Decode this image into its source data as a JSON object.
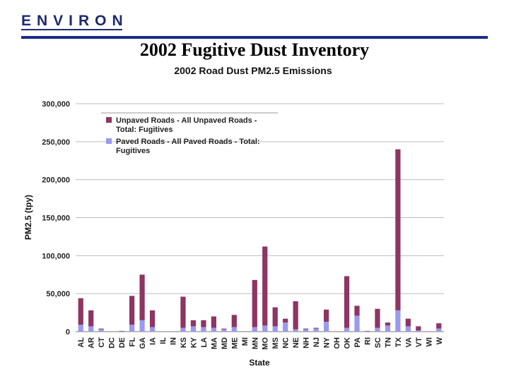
{
  "logo": {
    "text": "ENVIRON",
    "color": "#1e2a6e"
  },
  "slide": {
    "title": "2002 Fugitive Dust Inventory"
  },
  "chart_data": {
    "type": "bar",
    "stacked": true,
    "title": "2002 Road Dust PM2.5 Emissions",
    "xlabel": "State",
    "ylabel": "PM2.5 (tpy)",
    "ylim": [
      0,
      300000
    ],
    "yticks": [
      0,
      50000,
      100000,
      150000,
      200000,
      250000,
      300000
    ],
    "ytick_labels": [
      "0",
      "50,000",
      "100,000",
      "150,000",
      "200,000",
      "250,000",
      "300,000"
    ],
    "grid": true,
    "legend_position": "top-left",
    "categories": [
      "AL",
      "AR",
      "CT",
      "DC",
      "DE",
      "FL",
      "GA",
      "IA",
      "IL",
      "IN",
      "KS",
      "KY",
      "LA",
      "MA",
      "MD",
      "ME",
      "MI",
      "MN",
      "MO",
      "MS",
      "NC",
      "NE",
      "NH",
      "NJ",
      "NY",
      "OH",
      "OK",
      "PA",
      "RI",
      "SC",
      "TN",
      "TX",
      "VA",
      "VT",
      "WI",
      "W"
    ],
    "series": [
      {
        "name": "Unpaved Roads - All Unpaved Roads - Total: Fugitives",
        "color": "#8e3562",
        "values": [
          35000,
          21000,
          1000,
          0,
          500,
          38000,
          60000,
          22000,
          0,
          0,
          41000,
          8000,
          9000,
          15000,
          1000,
          16000,
          0,
          62000,
          104000,
          25000,
          5000,
          37000,
          1000,
          1000,
          16000,
          0,
          68000,
          13000,
          500,
          25000,
          4000,
          212000,
          10000,
          5500,
          0,
          7000
        ]
      },
      {
        "name": "Paved Roads - All Paved Roads - Total: Fugitives",
        "color": "#9a9aee",
        "values": [
          9000,
          7000,
          3000,
          0,
          500,
          9000,
          15000,
          6000,
          0,
          0,
          5000,
          7000,
          6000,
          5000,
          3000,
          6000,
          0,
          6000,
          8000,
          7000,
          12000,
          3000,
          3000,
          4000,
          13000,
          0,
          5000,
          21000,
          500,
          5000,
          8000,
          28000,
          7000,
          1500,
          0,
          4000
        ]
      }
    ]
  }
}
